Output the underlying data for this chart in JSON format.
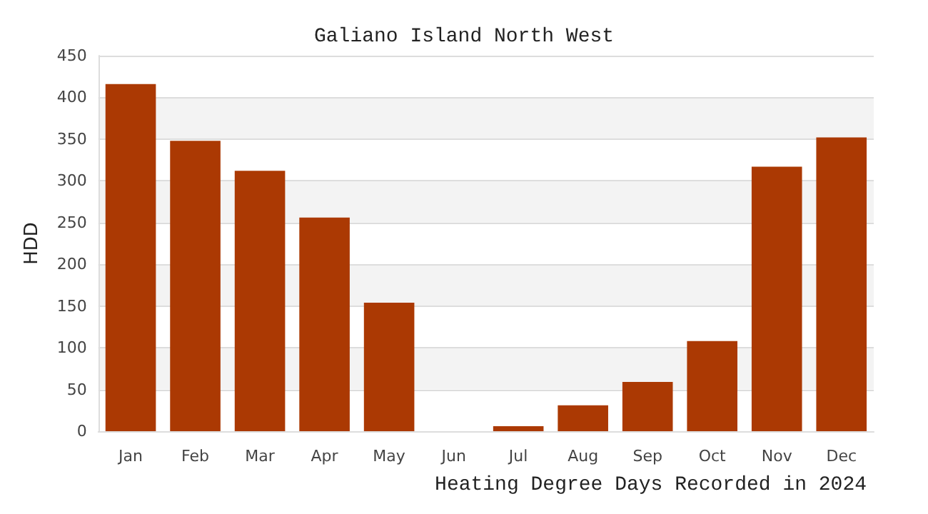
{
  "chart_data": {
    "type": "bar",
    "title": "Galiano Island North West",
    "xlabel": "Heating Degree Days Recorded in 2024",
    "ylabel": "HDD",
    "categories": [
      "Jan",
      "Feb",
      "Mar",
      "Apr",
      "May",
      "Jun",
      "Jul",
      "Aug",
      "Sep",
      "Oct",
      "Nov",
      "Dec"
    ],
    "values": [
      416,
      348,
      312,
      256,
      154,
      0,
      6,
      31,
      59,
      108,
      317,
      352
    ],
    "color": "#ab3903",
    "ylim": [
      0,
      450
    ],
    "yticks": [
      0,
      50,
      100,
      150,
      200,
      250,
      300,
      350,
      400,
      450
    ],
    "grid": true
  }
}
